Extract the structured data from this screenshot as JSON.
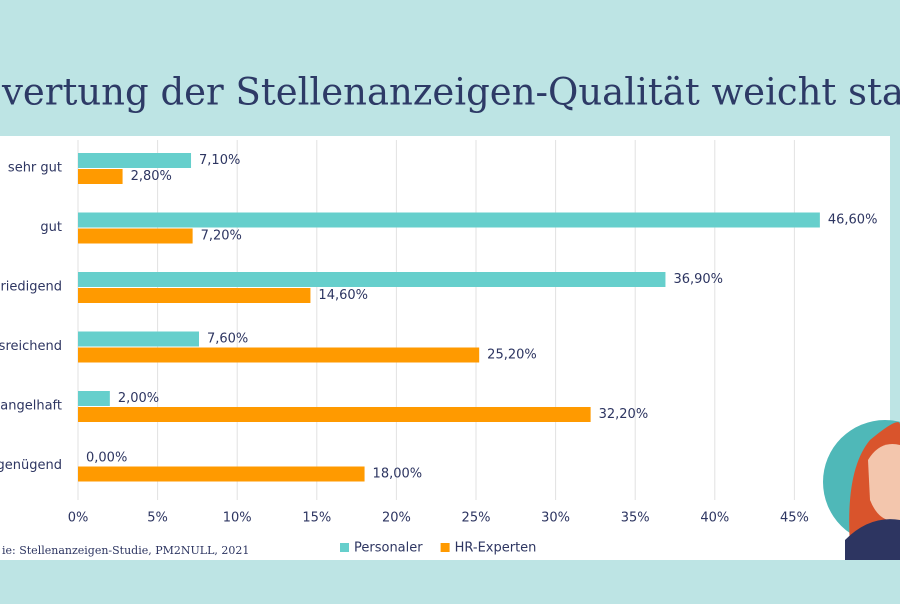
{
  "chart_data": {
    "type": "bar",
    "orientation": "horizontal",
    "title": "vertung der Stellenanzeigen-Qualität weicht stark a",
    "source": "ie: Stellenanzeigen-Studie, PM2NULL, 2021",
    "categories": [
      "sehr gut",
      "gut",
      "riedigend",
      "sreichend",
      "angelhaft",
      "genügend"
    ],
    "series": [
      {
        "name": "Personaler",
        "color": "#66cfcc",
        "values": [
          7.1,
          46.6,
          36.9,
          7.6,
          2.0,
          0.0
        ],
        "value_labels": [
          "7,10%",
          "46,60%",
          "36,90%",
          "7,60%",
          "2,00%",
          "0,00%"
        ]
      },
      {
        "name": "HR-Experten",
        "color": "#ff9a00",
        "values": [
          2.8,
          7.2,
          14.6,
          25.2,
          32.2,
          18.0
        ],
        "value_labels": [
          "2,80%",
          "7,20%",
          "14,60%",
          "25,20%",
          "32,20%",
          "18,00%"
        ]
      }
    ],
    "xlim": [
      0,
      50
    ],
    "xticks": [
      {
        "value": 0,
        "label": "0%"
      },
      {
        "value": 5,
        "label": "5%"
      },
      {
        "value": 10,
        "label": "10%"
      },
      {
        "value": 15,
        "label": "15%"
      },
      {
        "value": 20,
        "label": "20%"
      },
      {
        "value": 25,
        "label": "25%"
      },
      {
        "value": 30,
        "label": "30%"
      },
      {
        "value": 35,
        "label": "35%"
      },
      {
        "value": 40,
        "label": "40%"
      },
      {
        "value": 45,
        "label": "45%"
      }
    ],
    "grid": true
  }
}
